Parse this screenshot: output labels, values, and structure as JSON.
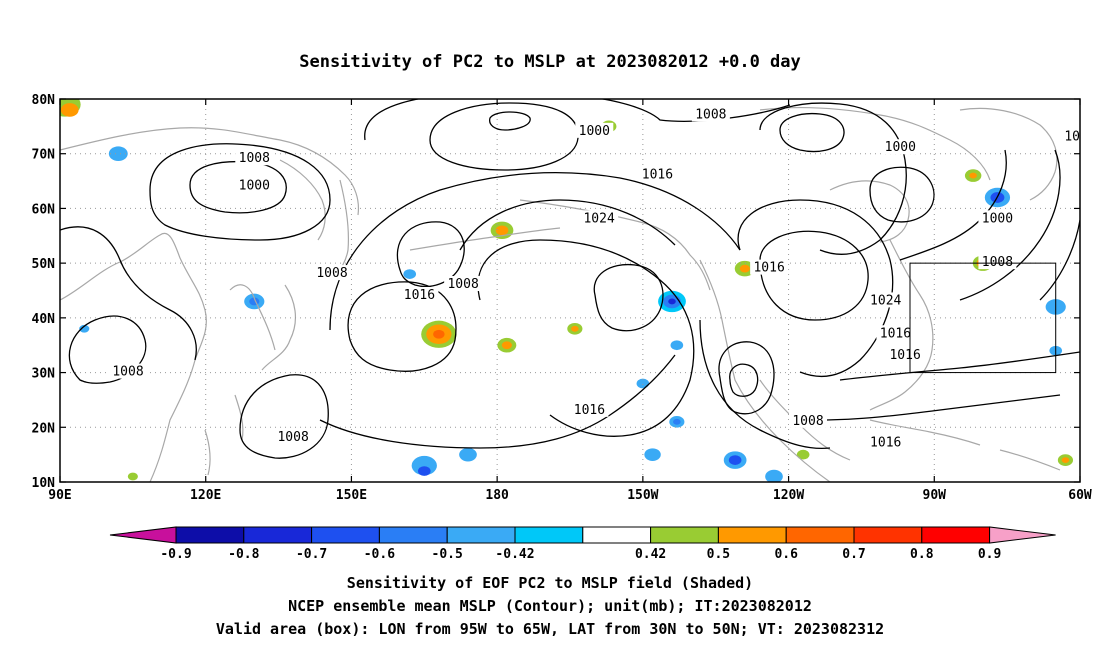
{
  "title": "Sensitivity of PC2 to MSLP at 2023082012 +0.0 day",
  "map": {
    "lon_range": [
      90,
      300
    ],
    "lat_range": [
      10,
      80
    ],
    "x_tick_labels": [
      "90E",
      "120E",
      "150E",
      "180",
      "150W",
      "120W",
      "90W",
      "60W"
    ],
    "x_tick_lons": [
      90,
      120,
      150,
      180,
      210,
      240,
      270,
      300
    ],
    "y_tick_labels": [
      "10N",
      "20N",
      "30N",
      "40N",
      "50N",
      "60N",
      "70N",
      "80N"
    ],
    "y_tick_lats": [
      10,
      20,
      30,
      40,
      50,
      60,
      70,
      80
    ],
    "grid": "dotted",
    "valid_box": {
      "lon_min": 265,
      "lon_max": 295,
      "lat_min": 30,
      "lat_max": 50
    }
  },
  "contour_labels": [
    {
      "text": "1000",
      "lon": 200,
      "lat": 74
    },
    {
      "text": "1008",
      "lon": 224,
      "lat": 77
    },
    {
      "text": "1008",
      "lon": 130,
      "lat": 69
    },
    {
      "text": "1000",
      "lon": 130,
      "lat": 64
    },
    {
      "text": "1016",
      "lon": 213,
      "lat": 66
    },
    {
      "text": "1024",
      "lon": 201,
      "lat": 58
    },
    {
      "text": "1000",
      "lon": 263,
      "lat": 71
    },
    {
      "text": "1016",
      "lon": 300,
      "lat": 73
    },
    {
      "text": "1024",
      "lon": 308,
      "lat": 67
    },
    {
      "text": "1000",
      "lon": 283,
      "lat": 58
    },
    {
      "text": "1008",
      "lon": 146,
      "lat": 48
    },
    {
      "text": "1008",
      "lon": 173,
      "lat": 46
    },
    {
      "text": "1016",
      "lon": 164,
      "lat": 44
    },
    {
      "text": "1016",
      "lon": 236,
      "lat": 49
    },
    {
      "text": "1008",
      "lon": 283,
      "lat": 50
    },
    {
      "text": "1024",
      "lon": 260,
      "lat": 43
    },
    {
      "text": "1016",
      "lon": 262,
      "lat": 37
    },
    {
      "text": "1016",
      "lon": 264,
      "lat": 33
    },
    {
      "text": "1008",
      "lon": 104,
      "lat": 30
    },
    {
      "text": "1008",
      "lon": 138,
      "lat": 18
    },
    {
      "text": "1016",
      "lon": 199,
      "lat": 23
    },
    {
      "text": "1008",
      "lon": 244,
      "lat": 21
    },
    {
      "text": "1016",
      "lon": 260,
      "lat": 17
    }
  ],
  "colorbar": {
    "labels": [
      "-0.9",
      "-0.8",
      "-0.7",
      "-0.6",
      "-0.5",
      "-0.42",
      "0.42",
      "0.5",
      "0.6",
      "0.7",
      "0.8",
      "0.9"
    ],
    "colors": [
      "#0d0da8",
      "#1828d8",
      "#1e50f0",
      "#2a7ef5",
      "#3aaaf5",
      "#00c8f8",
      "#ffffff",
      "#99cc33",
      "#ff9900",
      "#ff6600",
      "#ff3300",
      "#ff0000"
    ],
    "low_end_color": "#c8109c",
    "high_end_color": "#f7a0c8"
  },
  "footer": {
    "line1": "Sensitivity of EOF PC2 to MSLP field (Shaded)",
    "line2": "NCEP ensemble mean MSLP (Contour); unit(mb); IT:2023082012",
    "line3": "Valid area (box): LON from 95W to 65W, LAT from 30N to 50N; VT: 2023082312"
  },
  "shading_blobs": [
    {
      "lon": 91,
      "lat": 79,
      "r": 2.5,
      "color": "#99cc33"
    },
    {
      "lon": 92,
      "lat": 78,
      "r": 1.4,
      "color": "#ff9900"
    },
    {
      "lon": 102,
      "lat": 70,
      "r": 1.5,
      "color": "#3aaaf5"
    },
    {
      "lon": 203,
      "lat": 75,
      "r": 1.2,
      "color": "#99cc33"
    },
    {
      "lon": 181,
      "lat": 56,
      "r": 1.8,
      "color": "#99cc33"
    },
    {
      "lon": 181,
      "lat": 56,
      "r": 1.0,
      "color": "#ff9900"
    },
    {
      "lon": 162,
      "lat": 48,
      "r": 1.0,
      "color": "#3aaaf5"
    },
    {
      "lon": 168,
      "lat": 37,
      "r": 2.8,
      "color": "#99cc33"
    },
    {
      "lon": 168,
      "lat": 37,
      "r": 2.0,
      "color": "#ff9900"
    },
    {
      "lon": 168,
      "lat": 37,
      "r": 0.9,
      "color": "#ff6600"
    },
    {
      "lon": 182,
      "lat": 35,
      "r": 1.5,
      "color": "#99cc33"
    },
    {
      "lon": 182,
      "lat": 35,
      "r": 0.8,
      "color": "#ff9900"
    },
    {
      "lon": 196,
      "lat": 38,
      "r": 1.2,
      "color": "#99cc33"
    },
    {
      "lon": 196,
      "lat": 38,
      "r": 0.6,
      "color": "#ff9900"
    },
    {
      "lon": 130,
      "lat": 43,
      "r": 1.6,
      "color": "#3aaaf5"
    },
    {
      "lon": 130,
      "lat": 43,
      "r": 0.8,
      "color": "#2a7ef5"
    },
    {
      "lon": 216,
      "lat": 43,
      "r": 2.2,
      "color": "#00c8f8"
    },
    {
      "lon": 216,
      "lat": 43,
      "r": 1.4,
      "color": "#2a7ef5"
    },
    {
      "lon": 216,
      "lat": 43,
      "r": 0.6,
      "color": "#1828d8"
    },
    {
      "lon": 217,
      "lat": 35,
      "r": 1.0,
      "color": "#3aaaf5"
    },
    {
      "lon": 210,
      "lat": 28,
      "r": 1.0,
      "color": "#3aaaf5"
    },
    {
      "lon": 217,
      "lat": 21,
      "r": 1.2,
      "color": "#3aaaf5"
    },
    {
      "lon": 217,
      "lat": 21,
      "r": 0.6,
      "color": "#2a7ef5"
    },
    {
      "lon": 212,
      "lat": 15,
      "r": 1.3,
      "color": "#3aaaf5"
    },
    {
      "lon": 229,
      "lat": 14,
      "r": 1.8,
      "color": "#3aaaf5"
    },
    {
      "lon": 229,
      "lat": 14,
      "r": 1.0,
      "color": "#1e50f0"
    },
    {
      "lon": 231,
      "lat": 49,
      "r": 1.6,
      "color": "#99cc33"
    },
    {
      "lon": 231,
      "lat": 49,
      "r": 0.8,
      "color": "#ff9900"
    },
    {
      "lon": 280,
      "lat": 50,
      "r": 1.6,
      "color": "#99cc33"
    },
    {
      "lon": 280,
      "lat": 50,
      "r": 1.0,
      "color": "#ff9900"
    },
    {
      "lon": 283,
      "lat": 62,
      "r": 2.0,
      "color": "#3aaaf5"
    },
    {
      "lon": 283,
      "lat": 62,
      "r": 1.1,
      "color": "#1e50f0"
    },
    {
      "lon": 278,
      "lat": 66,
      "r": 1.3,
      "color": "#99cc33"
    },
    {
      "lon": 278,
      "lat": 66,
      "r": 0.6,
      "color": "#ff9900"
    },
    {
      "lon": 311,
      "lat": 67,
      "r": 1.6,
      "color": "#99cc33"
    },
    {
      "lon": 312,
      "lat": 64,
      "r": 1.3,
      "color": "#ff9900"
    },
    {
      "lon": 303,
      "lat": 60,
      "r": 1.8,
      "color": "#99cc33"
    },
    {
      "lon": 295,
      "lat": 42,
      "r": 1.6,
      "color": "#3aaaf5"
    },
    {
      "lon": 295,
      "lat": 34,
      "r": 1.0,
      "color": "#3aaaf5"
    },
    {
      "lon": 301,
      "lat": 28,
      "r": 0.8,
      "color": "#3aaaf5"
    },
    {
      "lon": 307,
      "lat": 51,
      "r": 0.9,
      "color": "#3aaaf5"
    },
    {
      "lon": 297,
      "lat": 14,
      "r": 1.2,
      "color": "#99cc33"
    },
    {
      "lon": 297,
      "lat": 14,
      "r": 0.6,
      "color": "#ff9900"
    },
    {
      "lon": 311,
      "lat": 14,
      "r": 1.6,
      "color": "#99cc33"
    },
    {
      "lon": 311,
      "lat": 14,
      "r": 0.8,
      "color": "#ff9900"
    },
    {
      "lon": 95,
      "lat": 38,
      "r": 0.8,
      "color": "#3aaaf5"
    },
    {
      "lon": 243,
      "lat": 15,
      "r": 1.0,
      "color": "#99cc33"
    },
    {
      "lon": 237,
      "lat": 11,
      "r": 1.4,
      "color": "#3aaaf5"
    },
    {
      "lon": 174,
      "lat": 15,
      "r": 1.4,
      "color": "#3aaaf5"
    },
    {
      "lon": 165,
      "lat": 13,
      "r": 2.0,
      "color": "#3aaaf5"
    },
    {
      "lon": 165,
      "lat": 12,
      "r": 1.0,
      "color": "#1e50f0"
    },
    {
      "lon": 105,
      "lat": 11,
      "r": 0.8,
      "color": "#99cc33"
    }
  ]
}
